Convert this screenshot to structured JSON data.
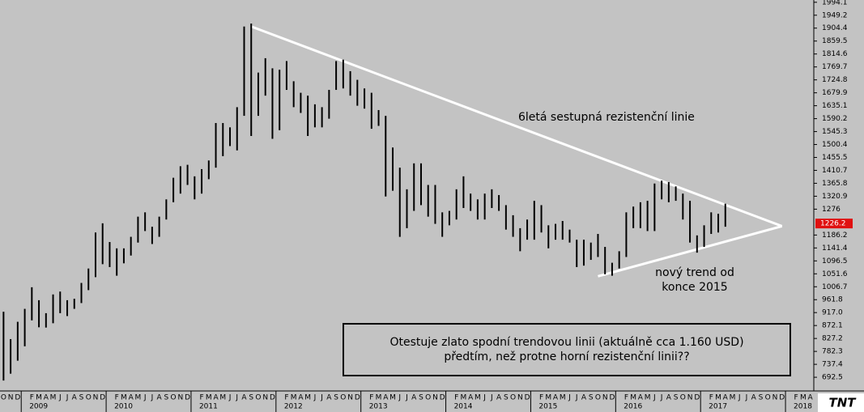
{
  "chart_data": {
    "type": "range",
    "color": "#000000",
    "x": [
      "2008-10",
      "2008-11",
      "2008-12",
      "2009-01",
      "2009-02",
      "2009-03",
      "2009-04",
      "2009-05",
      "2009-06",
      "2009-07",
      "2009-08",
      "2009-09",
      "2009-10",
      "2009-11",
      "2009-12",
      "2010-01",
      "2010-02",
      "2010-03",
      "2010-04",
      "2010-05",
      "2010-06",
      "2010-07",
      "2010-08",
      "2010-09",
      "2010-10",
      "2010-11",
      "2010-12",
      "2011-01",
      "2011-02",
      "2011-03",
      "2011-04",
      "2011-05",
      "2011-06",
      "2011-07",
      "2011-08",
      "2011-09",
      "2011-10",
      "2011-11",
      "2011-12",
      "2012-01",
      "2012-02",
      "2012-03",
      "2012-04",
      "2012-05",
      "2012-06",
      "2012-07",
      "2012-08",
      "2012-09",
      "2012-10",
      "2012-11",
      "2012-12",
      "2013-01",
      "2013-02",
      "2013-03",
      "2013-04",
      "2013-05",
      "2013-06",
      "2013-07",
      "2013-08",
      "2013-09",
      "2013-10",
      "2013-11",
      "2013-12",
      "2014-01",
      "2014-02",
      "2014-03",
      "2014-04",
      "2014-05",
      "2014-06",
      "2014-07",
      "2014-08",
      "2014-09",
      "2014-10",
      "2014-11",
      "2014-12",
      "2015-01",
      "2015-02",
      "2015-03",
      "2015-04",
      "2015-05",
      "2015-06",
      "2015-07",
      "2015-08",
      "2015-09",
      "2015-10",
      "2015-11",
      "2015-12",
      "2016-01",
      "2016-02",
      "2016-03",
      "2016-04",
      "2016-05",
      "2016-06",
      "2016-07",
      "2016-08",
      "2016-09",
      "2016-10",
      "2016-11",
      "2016-12",
      "2017-01",
      "2017-02",
      "2017-03",
      "2017-04"
    ],
    "high": [
      920,
      825,
      885,
      930,
      1005,
      960,
      915,
      980,
      990,
      960,
      965,
      1020,
      1070,
      1195,
      1227,
      1162,
      1140,
      1140,
      1180,
      1250,
      1265,
      1215,
      1250,
      1310,
      1385,
      1425,
      1430,
      1390,
      1415,
      1445,
      1575,
      1575,
      1560,
      1630,
      1910,
      1920,
      1750,
      1800,
      1765,
      1760,
      1790,
      1720,
      1680,
      1670,
      1640,
      1630,
      1690,
      1790,
      1795,
      1755,
      1725,
      1695,
      1680,
      1620,
      1600,
      1490,
      1420,
      1345,
      1435,
      1435,
      1360,
      1360,
      1265,
      1270,
      1345,
      1390,
      1330,
      1310,
      1330,
      1345,
      1325,
      1290,
      1255,
      1210,
      1240,
      1305,
      1290,
      1220,
      1225,
      1235,
      1205,
      1170,
      1170,
      1160,
      1190,
      1145,
      1090,
      1130,
      1265,
      1285,
      1300,
      1305,
      1365,
      1375,
      1370,
      1355,
      1330,
      1305,
      1185,
      1220,
      1265,
      1260,
      1295
    ],
    "low": [
      681,
      705,
      750,
      800,
      890,
      866,
      865,
      880,
      915,
      905,
      930,
      950,
      995,
      1040,
      1085,
      1075,
      1045,
      1088,
      1115,
      1160,
      1200,
      1155,
      1180,
      1240,
      1300,
      1330,
      1360,
      1310,
      1330,
      1380,
      1420,
      1460,
      1495,
      1480,
      1600,
      1530,
      1600,
      1670,
      1520,
      1550,
      1690,
      1630,
      1610,
      1530,
      1560,
      1560,
      1590,
      1690,
      1695,
      1670,
      1635,
      1625,
      1555,
      1565,
      1320,
      1340,
      1180,
      1210,
      1270,
      1290,
      1250,
      1225,
      1180,
      1220,
      1240,
      1280,
      1270,
      1240,
      1240,
      1280,
      1270,
      1205,
      1180,
      1130,
      1170,
      1170,
      1195,
      1140,
      1170,
      1170,
      1160,
      1075,
      1080,
      1100,
      1110,
      1050,
      1045,
      1070,
      1110,
      1210,
      1210,
      1200,
      1200,
      1310,
      1300,
      1305,
      1240,
      1160,
      1125,
      1145,
      1190,
      1195,
      1215
    ],
    "xlim": [
      "2008-10",
      "2018-05"
    ],
    "xticks": [
      {
        "value": "2009-01",
        "label": "2009"
      },
      {
        "value": "2010-01",
        "label": "2010"
      },
      {
        "value": "2011-01",
        "label": "2011"
      },
      {
        "value": "2012-01",
        "label": "2012"
      },
      {
        "value": "2013-01",
        "label": "2013"
      },
      {
        "value": "2014-01",
        "label": "2014"
      },
      {
        "value": "2015-01",
        "label": "2015"
      },
      {
        "value": "2016-01",
        "label": "2016"
      },
      {
        "value": "2017-01",
        "label": "2017"
      },
      {
        "value": "2018-01",
        "label": "2018"
      }
    ],
    "month_letters": [
      "J",
      "F",
      "M",
      "A",
      "M",
      "J",
      "J",
      "A",
      "S",
      "O",
      "N",
      "D"
    ],
    "ylim": [
      645,
      2002
    ],
    "yticks": [
      692.5,
      737.4,
      782.3,
      827.2,
      872.1,
      {
        "value": 917,
        "label": "917.0"
      },
      961.8,
      1006.7,
      1051.6,
      1096.5,
      1141.4,
      1186.2,
      1276,
      1320.9,
      1365.8,
      1410.7,
      1455.5,
      1500.4,
      1545.3,
      1590.2,
      1635.1,
      1679.9,
      1724.8,
      1769.7,
      1814.6,
      1859.5,
      1904.4,
      1949.2,
      1994.1
    ],
    "last_price": 1226.2,
    "trendlines": [
      {
        "x": [
          "2011-09",
          "2017-12"
        ],
        "y": [
          1910,
          1217
        ]
      },
      {
        "x": [
          "2015-10",
          "2017-12"
        ],
        "y": [
          1043,
          1217
        ]
      }
    ],
    "annotations": [
      "6letá sestupná rezistenční linie",
      "nový trend od",
      "konce 2015"
    ],
    "note": [
      "Otestuje zlato spodní trendovou linii (aktuálně cca 1.160 USD)",
      "předtím, než protne horní rezistenční linii??"
    ],
    "logo": "TNT"
  }
}
